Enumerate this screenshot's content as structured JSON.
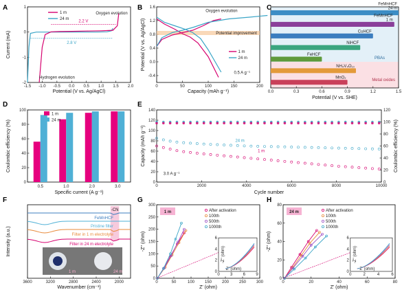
{
  "panels": {
    "A": "A",
    "B": "B",
    "C": "C",
    "D": "D",
    "E": "E",
    "F": "F",
    "G": "G",
    "H": "H"
  },
  "chart_data": [
    {
      "id": "A",
      "type": "line",
      "xlabel": "Potential (V vs. Ag/AgCl)",
      "ylabel": "Current (mA)",
      "xlim": [
        -1.5,
        2.0
      ],
      "ylim": [
        -2,
        1
      ],
      "xticks": [
        "-1.5",
        "-1.0",
        "-0.5",
        "0.0",
        "0.5",
        "1.0",
        "1.5",
        "2.0"
      ],
      "yticks": [
        "-2",
        "-1",
        "0",
        "1"
      ],
      "legend": [
        "1 m",
        "24 m"
      ],
      "annotations": {
        "oxygen": "Oxygen evolution",
        "hydrogen": "Hydrogen evolution",
        "w1": "2.2 V",
        "w2": "2.8 V"
      },
      "series": [
        {
          "name": "1 m",
          "color": "#d6006f",
          "x": [
            -1.1,
            -1.0,
            -0.9,
            -0.7,
            -0.4,
            0.0,
            0.5,
            1.0,
            1.4,
            1.55,
            1.6
          ],
          "y": [
            -2.0,
            -0.6,
            -0.1,
            0.01,
            0.02,
            0.03,
            0.04,
            0.05,
            0.07,
            0.25,
            0.75
          ]
        },
        {
          "name": "24 m",
          "color": "#3aa5c7",
          "x": [
            -1.5,
            -1.45,
            -1.4,
            -1.2,
            -0.8,
            0.0,
            0.8,
            1.2,
            1.35,
            1.4
          ],
          "y": [
            -2.0,
            -0.6,
            -0.05,
            0.0,
            0.0,
            0.0,
            0.0,
            0.01,
            0.05,
            0.15
          ]
        }
      ]
    },
    {
      "id": "B",
      "type": "line",
      "xlabel": "Capacity (mAh g⁻¹)",
      "ylabel": "Potential (V vs. Ag/AgCl)",
      "xlim": [
        0,
        200
      ],
      "ylim": [
        -0.6,
        1.6
      ],
      "xticks": [
        "0",
        "50",
        "100",
        "150",
        "200"
      ],
      "yticks": [
        "-0.4",
        "0.0",
        "0.4",
        "0.8",
        "1.2",
        "1.6"
      ],
      "legend": [
        "1 m",
        "24 m"
      ],
      "annotations": {
        "oxygen": "Oxygen evolution",
        "potential": "Potential improvement",
        "rate": "0.5 A g⁻¹"
      },
      "series": [
        {
          "name": "1 m charge",
          "color": "#d6006f",
          "x": [
            0,
            10,
            30,
            50,
            70,
            90,
            110,
            125
          ],
          "y": [
            0.45,
            0.65,
            0.78,
            0.85,
            0.92,
            1.05,
            1.2,
            1.25
          ]
        },
        {
          "name": "1 m discharge",
          "color": "#d6006f",
          "x": [
            0,
            15,
            35,
            50,
            65,
            80,
            100,
            120
          ],
          "y": [
            1.25,
            1.1,
            0.95,
            0.82,
            0.72,
            0.55,
            0.15,
            -0.45
          ]
        },
        {
          "name": "24 m charge",
          "color": "#3aa5c7",
          "x": [
            0,
            10,
            30,
            50,
            70,
            100,
            140,
            180,
            215
          ],
          "y": [
            0.45,
            0.7,
            0.85,
            0.92,
            1.0,
            1.15,
            1.25,
            1.3,
            1.35
          ]
        },
        {
          "name": "24 m discharge",
          "color": "#3aa5c7",
          "x": [
            0,
            15,
            35,
            55,
            70,
            85,
            100,
            125
          ],
          "y": [
            1.3,
            1.15,
            1.05,
            0.95,
            0.85,
            0.68,
            0.35,
            -0.3
          ]
        }
      ]
    },
    {
      "id": "C",
      "type": "bar",
      "xlabel": "Potential (V vs. SHE)",
      "xlim": [
        0,
        1.5
      ],
      "xticks": [
        "0.0",
        "0.3",
        "0.6",
        "0.9",
        "1.2",
        "1.5"
      ],
      "groups": {
        "pba": "PBAs",
        "oxide": "Metal oxides"
      },
      "categories": [
        "FeMnHCF 24 m",
        "FeMnHCF 1 m",
        "CuHCF",
        "NiHCF",
        "FeHCF",
        "NH₄V₄O₁₀",
        "MnO₂"
      ],
      "labels": [
        [
          "FeMnHCF",
          "24 m"
        ],
        [
          "FeMnHCF",
          "1 m"
        ],
        [
          "CuHCF"
        ],
        [
          "NiHCF"
        ],
        [
          "FeHCF"
        ],
        [
          "NH₄V₄O₁₀"
        ],
        [
          "MnO₂"
        ]
      ],
      "values": [
        1.5,
        1.45,
        1.2,
        1.05,
        0.6,
        1.0,
        0.9
      ],
      "colors": [
        "#3c8dc5",
        "#8a3f9a",
        "#3b7dbf",
        "#3aa57f",
        "#5f9a3c",
        "#e39a3a",
        "#c9405a"
      ]
    },
    {
      "id": "D",
      "type": "bar",
      "xlabel": "Specific current (A g⁻¹)",
      "ylabel": "Coulombic efficiency (%)",
      "ylim": [
        0,
        100
      ],
      "yticks": [
        "0",
        "20",
        "40",
        "60",
        "80",
        "100"
      ],
      "categories": [
        "0.5",
        "1.0",
        "2.0",
        "3.0"
      ],
      "series": [
        {
          "name": "1 m",
          "color": "#e6007e",
          "values": [
            56,
            87,
            96,
            98
          ]
        },
        {
          "name": "24 m",
          "color": "#4fb0d6",
          "values": [
            93,
            96,
            98,
            98
          ]
        }
      ]
    },
    {
      "id": "E",
      "type": "scatter",
      "xlabel": "Cycle number",
      "ylabel": "Capacity (mAh g⁻¹)",
      "ylabel2": "Coulombic efficiency (%)",
      "xlim": [
        0,
        10000
      ],
      "ylim": [
        0,
        140
      ],
      "y2lim": [
        0,
        120
      ],
      "xticks": [
        "0",
        "2000",
        "4000",
        "6000",
        "8000",
        "10000"
      ],
      "yticks": [
        "0",
        "20",
        "40",
        "60",
        "80",
        "100",
        "120",
        "140"
      ],
      "y2ticks": [
        "0",
        "20",
        "40",
        "60",
        "80",
        "100",
        "120"
      ],
      "annotations": {
        "s24": "24 m",
        "s1": "1 m",
        "rate": "3.0 A g⁻¹"
      },
      "series": [
        {
          "name": "24 m capacity",
          "color": "#3aa5c7",
          "x": [
            0,
            500,
            1000,
            2000,
            3000,
            4000,
            5000,
            6000,
            7000,
            8000,
            9000,
            10000
          ],
          "y": [
            85,
            80,
            77,
            74,
            72,
            70,
            69,
            68,
            67,
            66,
            65,
            64
          ]
        },
        {
          "name": "1 m capacity",
          "color": "#d6006f",
          "x": [
            0,
            500,
            1000,
            2000,
            3000,
            4000,
            5000,
            6000,
            7000,
            8000,
            9000,
            10000
          ],
          "y": [
            70,
            65,
            60,
            55,
            51,
            47,
            43,
            39,
            35,
            31,
            28,
            25
          ]
        },
        {
          "name": "24 m CE",
          "color": "#3aa5c7",
          "x": [
            0,
            10000
          ],
          "y": [
            100,
            100
          ]
        },
        {
          "name": "1 m CE",
          "color": "#d6006f",
          "x": [
            0,
            10000
          ],
          "y": [
            98,
            98
          ]
        }
      ]
    },
    {
      "id": "F",
      "type": "line",
      "xlabel": "Wavenumber (cm⁻¹)",
      "ylabel": "Intensity (a.u.)",
      "xlim": [
        3600,
        1800
      ],
      "xticks": [
        "3600",
        "3200",
        "2800",
        "2400",
        "2000"
      ],
      "annotations": {
        "cn": "-CN",
        "femn": "FeMnHCF",
        "pristine": "Pristine filter",
        "f1": "Filter in 1 m electrolyte",
        "f24": "Filter in 24 m electrolyte",
        "i1": "1 m",
        "i24": "24 m"
      }
    },
    {
      "id": "G",
      "type": "line",
      "title": "1 m",
      "xlabel": "Z' (ohm)",
      "ylabel": "-Z'' (ohm)",
      "xlim": [
        0,
        300
      ],
      "ylim": [
        0,
        300
      ],
      "xticks": [
        "0",
        "50",
        "100",
        "150",
        "200",
        "250",
        "300"
      ],
      "yticks": [
        "0",
        "50",
        "100",
        "150",
        "200",
        "250",
        "300"
      ],
      "legend": [
        "After activation",
        "100th",
        "500th",
        "1000th"
      ],
      "inset": {
        "xlabel": "Z' (ohm)",
        "ylabel": "-Z'' (ohm)",
        "xticks": [
          "0",
          "3",
          "6",
          "9"
        ],
        "yticks": [
          "0",
          "2",
          "4",
          "6"
        ]
      },
      "series": [
        {
          "name": "After activation",
          "color": "#d6006f",
          "x": [
            2,
            20,
            40,
            60,
            80
          ],
          "y": [
            0,
            40,
            90,
            140,
            185
          ]
        },
        {
          "name": "100th",
          "color": "#e88a3a",
          "x": [
            2,
            25,
            45,
            65,
            85
          ],
          "y": [
            0,
            45,
            95,
            145,
            195
          ]
        },
        {
          "name": "500th",
          "color": "#9a4fc4",
          "x": [
            2,
            22,
            42,
            62,
            80
          ],
          "y": [
            0,
            42,
            92,
            148,
            200
          ]
        },
        {
          "name": "1000th",
          "color": "#3aa5c7",
          "x": [
            2,
            20,
            40,
            55,
            72
          ],
          "y": [
            0,
            40,
            100,
            160,
            225
          ]
        }
      ]
    },
    {
      "id": "H",
      "type": "line",
      "title": "24 m",
      "xlabel": "Z' (ohm)",
      "ylabel": "-Z'' (ohm)",
      "xlim": [
        0,
        80
      ],
      "ylim": [
        0,
        80
      ],
      "xticks": [
        "0",
        "20",
        "40",
        "60",
        "80"
      ],
      "yticks": [
        "0",
        "20",
        "40",
        "60",
        "80"
      ],
      "legend": [
        "After activation",
        "100th",
        "500th",
        "1000th"
      ],
      "inset": {
        "xlabel": "Z' (ohm)",
        "ylabel": "-Z'' (ohm)",
        "xticks": [
          "0",
          "2",
          "4",
          "6"
        ],
        "yticks": [
          "0",
          "2",
          "4",
          "6"
        ]
      },
      "series": [
        {
          "name": "After activation",
          "color": "#d6006f",
          "x": [
            1,
            6,
            12,
            18,
            24
          ],
          "y": [
            0,
            12,
            26,
            40,
            52
          ]
        },
        {
          "name": "100th",
          "color": "#e88a3a",
          "x": [
            1,
            7,
            13,
            19,
            26
          ],
          "y": [
            0,
            12,
            25,
            38,
            50
          ]
        },
        {
          "name": "500th",
          "color": "#9a4fc4",
          "x": [
            1,
            7,
            14,
            20,
            28
          ],
          "y": [
            0,
            11,
            24,
            36,
            48
          ]
        },
        {
          "name": "1000th",
          "color": "#3aa5c7",
          "x": [
            1,
            8,
            16,
            23,
            31
          ],
          "y": [
            0,
            10,
            22,
            34,
            46
          ]
        }
      ]
    }
  ]
}
